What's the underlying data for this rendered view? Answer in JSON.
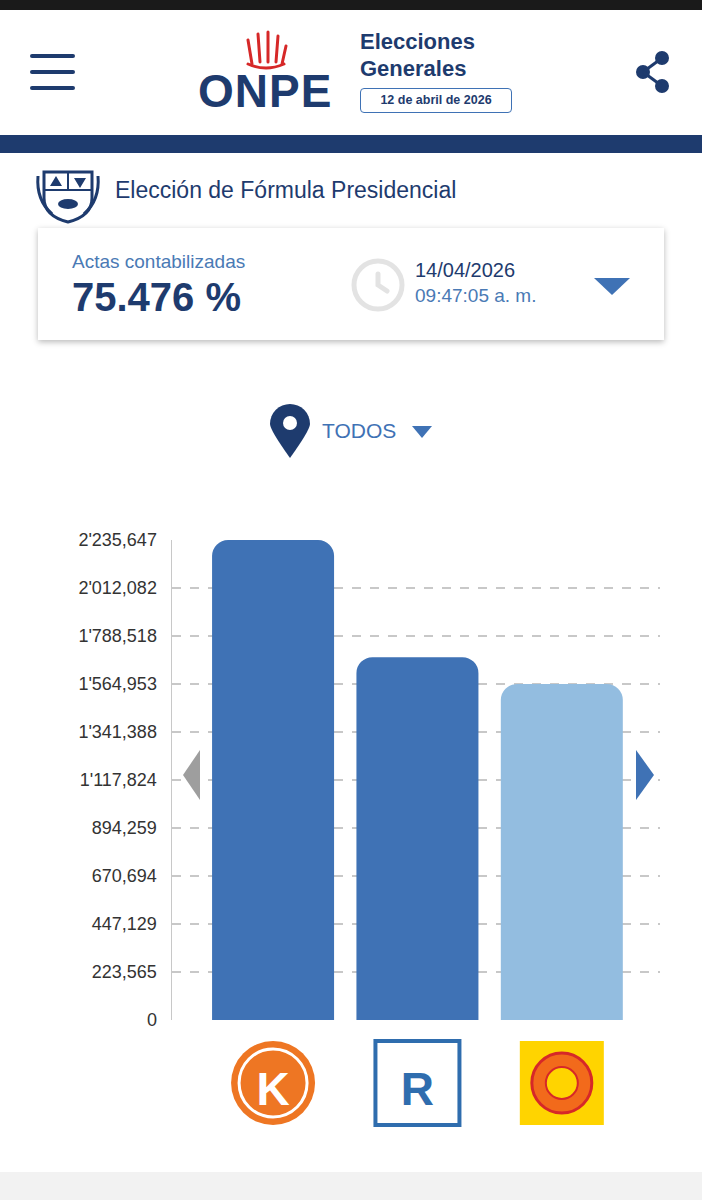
{
  "header": {
    "brand": "ONPE",
    "title": "Elecciones Generales",
    "date": "12 de abril de 2026"
  },
  "section_title": "Elección de Fórmula Presidencial",
  "summary": {
    "label": "Actas contabilizadas",
    "value": "75.476 %",
    "date": "14/04/2026",
    "time": "09:47:05 a. m."
  },
  "filter": "TODOS",
  "chart_data": {
    "type": "bar",
    "categories": [
      "K",
      "R",
      null
    ],
    "values": [
      2235647,
      1690000,
      1565000
    ],
    "colors": [
      "#3F72B5",
      "#3F72B5",
      "#93BDE0"
    ],
    "ylim": [
      0,
      2235647
    ],
    "yticks": [
      0,
      {
        "value": 223565,
        "label": "223,565"
      },
      {
        "value": 447129,
        "label": "447,129"
      },
      {
        "value": 670694,
        "label": "670,694"
      },
      {
        "value": 894259,
        "label": "894,259"
      },
      {
        "value": 1117824,
        "label": "1'117,824"
      },
      {
        "value": 1341388,
        "label": "1'341,388"
      },
      {
        "value": 1564953,
        "label": "1'564,953"
      },
      {
        "value": 1788518,
        "label": "1'788,518"
      },
      {
        "value": 2012082,
        "label": "2'012,082"
      },
      {
        "value": 2235647,
        "label": "2'235,647"
      }
    ],
    "grid": true
  }
}
